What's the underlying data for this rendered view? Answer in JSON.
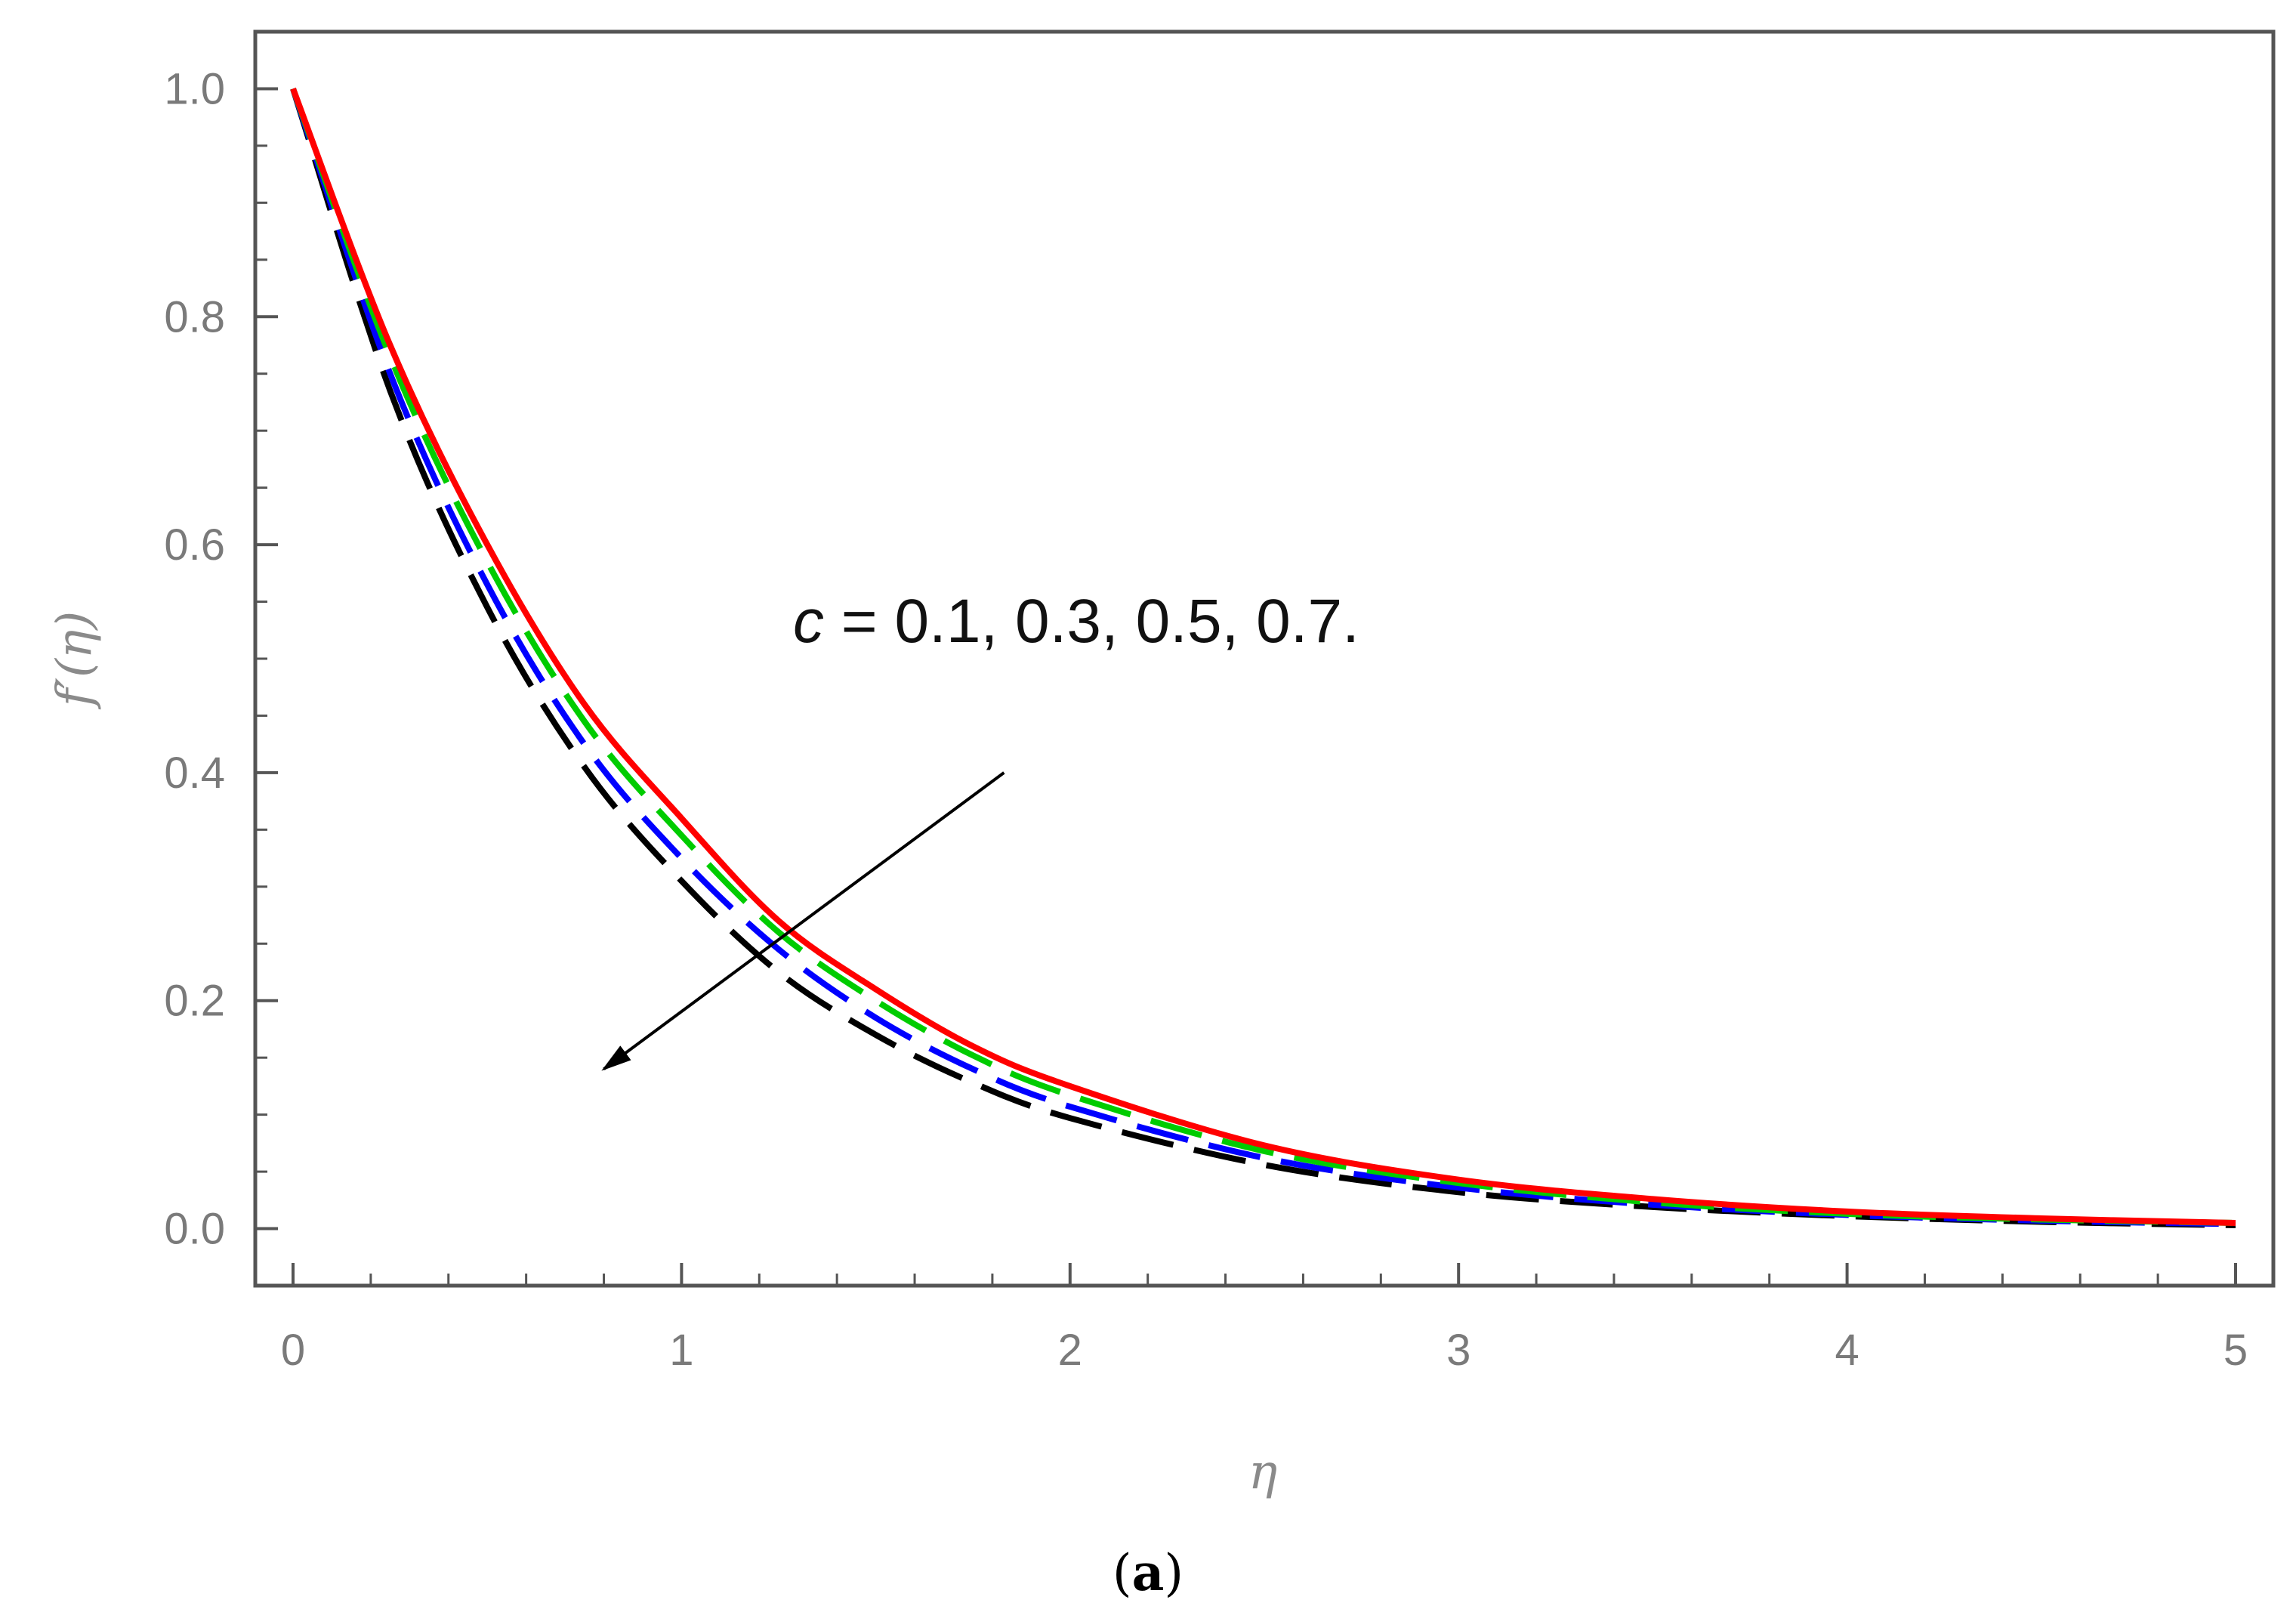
{
  "chart_data": {
    "type": "line",
    "xlabel": "η",
    "ylabel": "f′(η)",
    "xlim": [
      0,
      5
    ],
    "ylim": [
      -0.05,
      1.05
    ],
    "xticks": [
      "0",
      "1",
      "2",
      "3",
      "4",
      "5"
    ],
    "yticks": [
      "0.0",
      "0.2",
      "0.4",
      "0.6",
      "0.8",
      "1.0"
    ],
    "x_tick_values": [
      0,
      1,
      2,
      3,
      4,
      5
    ],
    "y_tick_values": [
      0.0,
      0.2,
      0.4,
      0.6,
      0.8,
      1.0
    ],
    "grid": false,
    "x": [
      0,
      0.25,
      0.5,
      0.75,
      1.0,
      1.25,
      1.5,
      1.75,
      2.0,
      2.5,
      3.0,
      3.5,
      4.0,
      4.5,
      5.0
    ],
    "series": [
      {
        "color": "#ff0000",
        "dash": "solid",
        "values": [
          1.0,
          0.775,
          0.6,
          0.46,
          0.36,
          0.27,
          0.21,
          0.16,
          0.125,
          0.073,
          0.043,
          0.026,
          0.015,
          0.009,
          0.005
        ]
      },
      {
        "color": "#00cc00",
        "dash": "long",
        "values": [
          1.0,
          0.765,
          0.585,
          0.445,
          0.345,
          0.26,
          0.2,
          0.152,
          0.117,
          0.068,
          0.04,
          0.023,
          0.013,
          0.008,
          0.005
        ]
      },
      {
        "color": "#0000ff",
        "dash": "long",
        "values": [
          1.0,
          0.75,
          0.565,
          0.425,
          0.325,
          0.245,
          0.185,
          0.14,
          0.107,
          0.062,
          0.036,
          0.021,
          0.012,
          0.007,
          0.004
        ]
      },
      {
        "color": "#000000",
        "dash": "long",
        "values": [
          1.0,
          0.735,
          0.545,
          0.405,
          0.305,
          0.225,
          0.17,
          0.128,
          0.097,
          0.056,
          0.032,
          0.019,
          0.011,
          0.006,
          0.003
        ]
      }
    ],
    "annotation": {
      "var": "c",
      "text": " = 0.1, 0.3, 0.5, 0.7."
    },
    "arrow": {
      "from": [
        1.83,
        0.4
      ],
      "to": [
        0.8,
        0.14
      ]
    }
  },
  "caption": {
    "open": "(",
    "letter": "a",
    "close": ")"
  }
}
